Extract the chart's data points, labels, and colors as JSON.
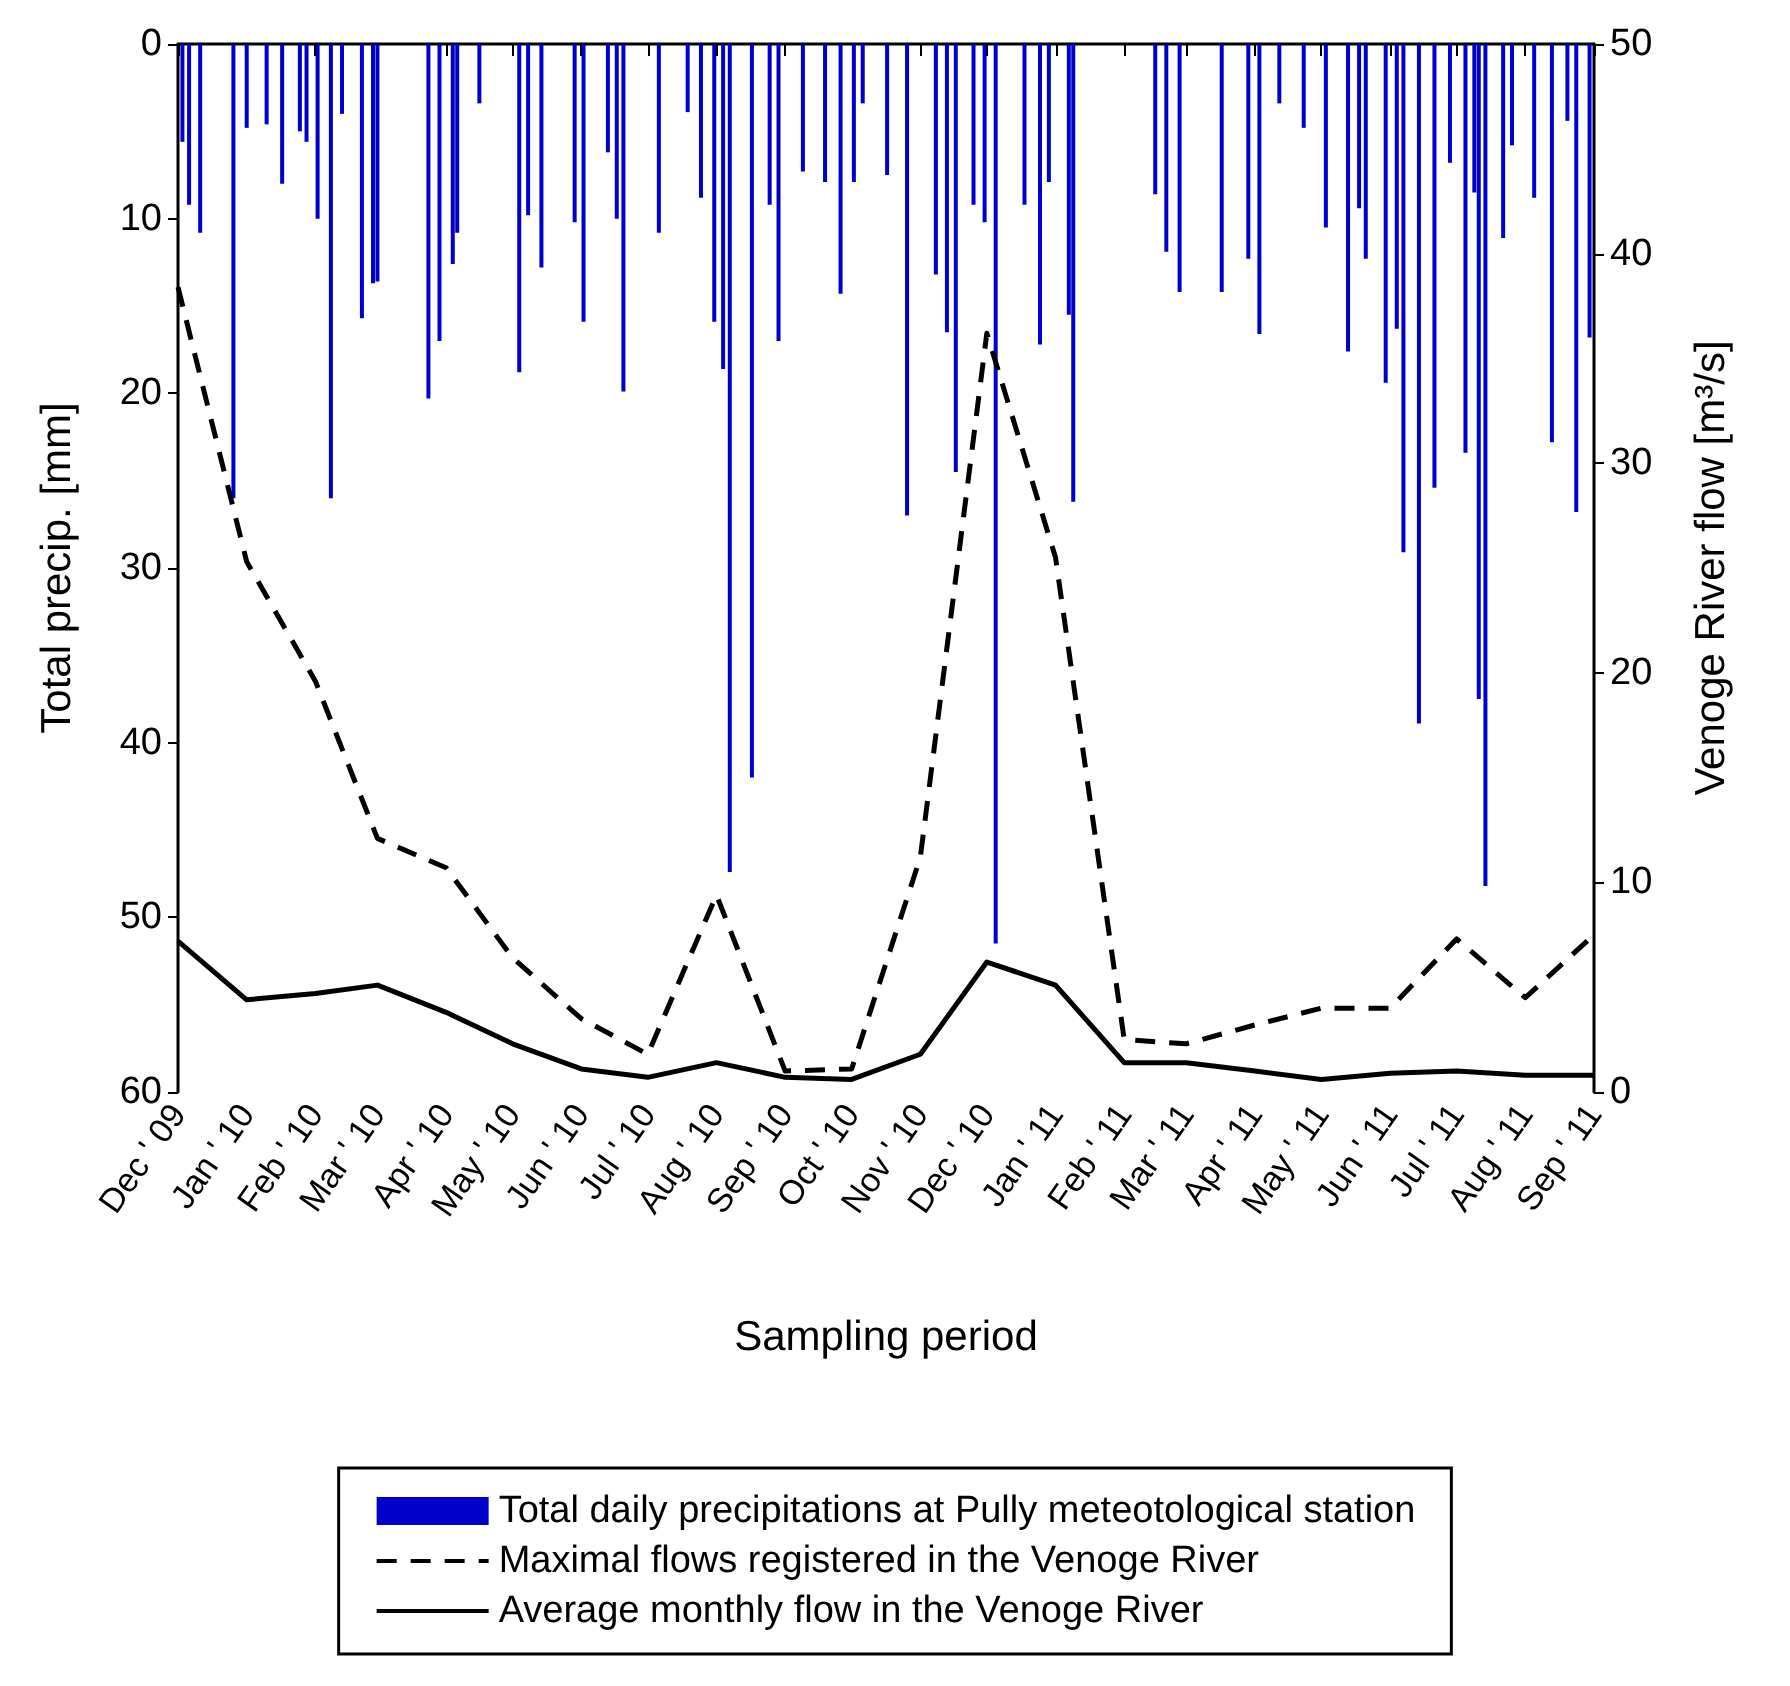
{
  "chart_data": {
    "type": "line",
    "xlabel": "Sampling period",
    "ylabel": "Total precip. [mm]",
    "y2label": "Venoge River flow [m³/s]",
    "x": [
      "2009-12-01",
      "2010-01-01",
      "2010-02-01",
      "2010-03-01",
      "2010-04-01",
      "2010-05-01",
      "2010-06-01",
      "2010-07-01",
      "2010-08-01",
      "2010-09-01",
      "2010-10-01",
      "2010-11-01",
      "2010-12-01",
      "2011-01-01",
      "2011-02-01",
      "2011-03-01",
      "2011-04-01",
      "2011-05-01",
      "2011-06-01",
      "2011-07-01",
      "2011-08-01",
      "2011-09-01"
    ],
    "xlim": [
      "2009-12-01",
      "2011-09-01"
    ],
    "xticks": [
      {
        "value": "2009-12-01",
        "label": "Dec ' 09"
      },
      {
        "value": "2010-01-01",
        "label": "Jan ' 10"
      },
      {
        "value": "2010-02-01",
        "label": "Feb ' 10"
      },
      {
        "value": "2010-03-01",
        "label": "Mar ' 10"
      },
      {
        "value": "2010-04-01",
        "label": "Apr ' 10"
      },
      {
        "value": "2010-05-01",
        "label": "May ' 10"
      },
      {
        "value": "2010-06-01",
        "label": "Jun ' 10"
      },
      {
        "value": "2010-07-01",
        "label": "Jul ' 10"
      },
      {
        "value": "2010-08-01",
        "label": "Aug ' 10"
      },
      {
        "value": "2010-09-01",
        "label": "Sep ' 10"
      },
      {
        "value": "2010-10-01",
        "label": "Oct ' 10"
      },
      {
        "value": "2010-11-01",
        "label": "Nov ' 10"
      },
      {
        "value": "2010-12-01",
        "label": "Dec ' 10"
      },
      {
        "value": "2011-01-01",
        "label": "Jan ' 11"
      },
      {
        "value": "2011-02-01",
        "label": "Feb ' 11"
      },
      {
        "value": "2011-03-01",
        "label": "Mar ' 11"
      },
      {
        "value": "2011-04-01",
        "label": "Apr ' 11"
      },
      {
        "value": "2011-05-01",
        "label": "May ' 11"
      },
      {
        "value": "2011-06-01",
        "label": "Jun ' 11"
      },
      {
        "value": "2011-07-01",
        "label": "Jul ' 11"
      },
      {
        "value": "2011-08-01",
        "label": "Aug ' 11"
      },
      {
        "value": "2011-09-01",
        "label": "Sep ' 11"
      }
    ],
    "ylim": [
      60,
      0
    ],
    "yticks": [
      0,
      10,
      20,
      30,
      40,
      50,
      60
    ],
    "y2lim": [
      0,
      50
    ],
    "y2ticks": [
      0,
      10,
      20,
      30,
      40,
      50
    ],
    "grid": false,
    "legend": "bottom",
    "marker": "none",
    "series": [
      {
        "name": "Total daily precipitations at Pully meteotological station",
        "type": "bar",
        "color": "#0000cc",
        "x": [
          "2009-12-03",
          "2009-12-06",
          "2009-12-11",
          "2009-12-26",
          "2010-01-01",
          "2010-01-10",
          "2010-01-17",
          "2010-01-25",
          "2010-01-28",
          "2010-02-02",
          "2010-02-08",
          "2010-02-13",
          "2010-02-22",
          "2010-02-27",
          "2010-03-01",
          "2010-03-24",
          "2010-03-29",
          "2010-04-04",
          "2010-04-06",
          "2010-04-16",
          "2010-05-04",
          "2010-05-08",
          "2010-05-14",
          "2010-05-29",
          "2010-06-02",
          "2010-06-13",
          "2010-06-17",
          "2010-06-20",
          "2010-07-06",
          "2010-07-19",
          "2010-07-25",
          "2010-07-31",
          "2010-08-04",
          "2010-08-07",
          "2010-08-17",
          "2010-08-25",
          "2010-08-29",
          "2010-09-09",
          "2010-09-19",
          "2010-09-26",
          "2010-10-02",
          "2010-10-06",
          "2010-10-17",
          "2010-10-26",
          "2010-11-08",
          "2010-11-13",
          "2010-11-17",
          "2010-11-25",
          "2010-11-30",
          "2010-12-05",
          "2010-12-18",
          "2010-12-25",
          "2010-12-29",
          "2011-01-07",
          "2011-01-09",
          "2011-02-15",
          "2011-02-20",
          "2011-02-26",
          "2011-03-17",
          "2011-03-29",
          "2011-04-03",
          "2011-04-12",
          "2011-04-23",
          "2011-05-03",
          "2011-05-13",
          "2011-05-18",
          "2011-05-21",
          "2011-05-30",
          "2011-06-04",
          "2011-06-07",
          "2011-06-14",
          "2011-06-21",
          "2011-06-28",
          "2011-07-05",
          "2011-07-09",
          "2011-07-11",
          "2011-07-14",
          "2011-07-22",
          "2011-07-26",
          "2011-08-05",
          "2011-08-13",
          "2011-08-20",
          "2011-08-24",
          "2011-08-30"
        ],
        "values": [
          5.6,
          9.2,
          10.8,
          26,
          4.8,
          4.6,
          8,
          5,
          5.6,
          10,
          26,
          4,
          15.7,
          13.7,
          13.6,
          20.3,
          17,
          12.6,
          10.8,
          3.4,
          18.8,
          9.8,
          12.8,
          10.2,
          15.9,
          6.2,
          10,
          19.9,
          10.8,
          3.9,
          8.8,
          15.9,
          18.6,
          47.4,
          42,
          9.2,
          17,
          7.3,
          7.9,
          14.3,
          7.9,
          3.4,
          7.5,
          27,
          13.2,
          16.5,
          24.5,
          9.2,
          10.2,
          51.5,
          9.2,
          17.2,
          7.9,
          15.5,
          26.2,
          8.6,
          11.9,
          14.2,
          14.2,
          12.3,
          16.6,
          3.4,
          4.8,
          10.5,
          17.6,
          9.4,
          12.3,
          19.4,
          16.3,
          29.1,
          38.9,
          25.4,
          6.8,
          23.4,
          8.5,
          37.5,
          48.2,
          11.1,
          5.8,
          8.8,
          22.8,
          4.4,
          26.8,
          16.8
        ]
      },
      {
        "name": "Maximal flows registered in the Venoge River",
        "axis": "y2",
        "color": "#000000",
        "line_style": "dashed",
        "values": [
          38.4,
          25.3,
          19.6,
          12.1,
          10.7,
          6.4,
          3.5,
          1.8,
          9.4,
          1.0,
          1.1,
          11.2,
          36.2,
          25.5,
          2.5,
          2.3,
          3.2,
          4.0,
          4.0,
          7.3,
          4.5,
          7.5
        ]
      },
      {
        "name": "Average monthly flow in the Venoge River",
        "axis": "y2",
        "color": "#000000",
        "line_style": "solid",
        "values": [
          7.2,
          4.4,
          4.7,
          5.1,
          3.8,
          2.3,
          1.1,
          0.7,
          1.4,
          0.7,
          0.6,
          1.8,
          6.2,
          5.1,
          1.4,
          1.4,
          1.0,
          0.6,
          0.9,
          1.0,
          0.8,
          0.8
        ]
      }
    ]
  }
}
